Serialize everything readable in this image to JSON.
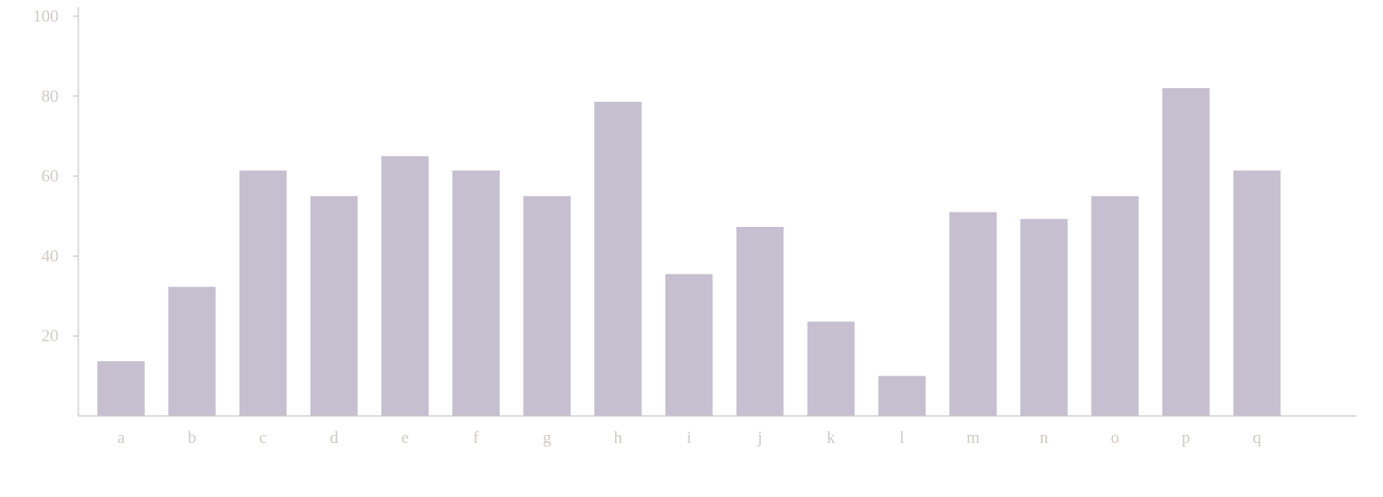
{
  "chart_data": {
    "type": "bar",
    "title": "",
    "xlabel": "",
    "ylabel": "",
    "categories": [
      "a",
      "b",
      "c",
      "d",
      "e",
      "f",
      "g",
      "h",
      "i",
      "j",
      "k",
      "l",
      "m",
      "n",
      "o",
      "p",
      "q"
    ],
    "values": [
      13.7,
      32.3,
      61.4,
      55.0,
      65.0,
      61.4,
      55.0,
      78.6,
      35.5,
      47.3,
      23.6,
      10.0,
      51.0,
      49.3,
      55.0,
      82.0,
      61.4
    ],
    "yticks": [
      "20",
      "40",
      "60",
      "80",
      "100"
    ],
    "ylim": [
      0,
      100
    ],
    "grid": false,
    "legend": "none",
    "colors": {
      "bar": "#c5bfcf",
      "axis": "#c8c8c8",
      "tick_text": "#cfcbc6"
    }
  }
}
